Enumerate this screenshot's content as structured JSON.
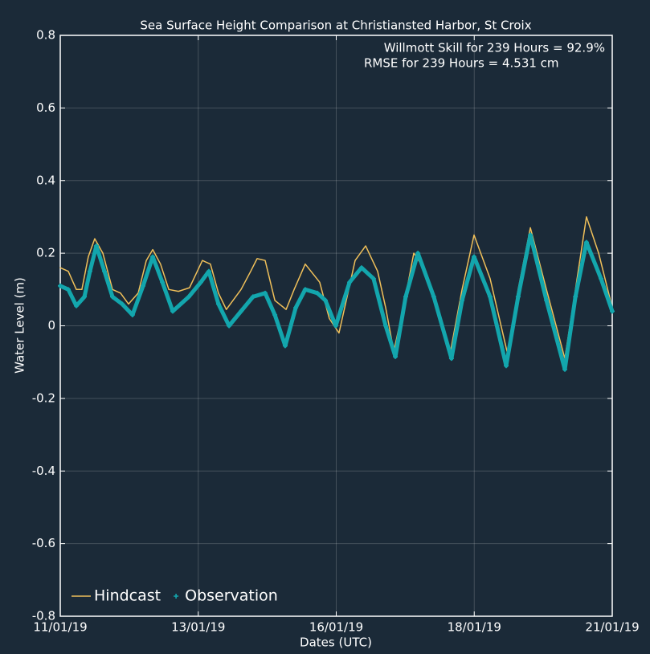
{
  "chart_data": {
    "type": "line",
    "title": "Sea Surface Height Comparison at Christiansted Harbor, St Croix",
    "x_label": "Dates (UTC)",
    "y_label": "Water Level (m)",
    "annotations": [
      "Willmott Skill for 239 Hours = 92.9%",
      "RMSE for 239 Hours = 4.531 cm"
    ],
    "xlim": [
      0,
      240
    ],
    "xticks": [
      {
        "value": 0,
        "label": "11/01/19"
      },
      {
        "value": 60,
        "label": "13/01/19"
      },
      {
        "value": 120,
        "label": "16/01/19"
      },
      {
        "value": 180,
        "label": "18/01/19"
      },
      {
        "value": 240,
        "label": "21/01/19"
      }
    ],
    "ylim": [
      -0.8,
      0.8
    ],
    "yticks": [
      -0.8,
      -0.6,
      -0.4,
      -0.2,
      0,
      0.2,
      0.4,
      0.6,
      0.8
    ],
    "grid": true,
    "legend": "lower left",
    "series": [
      {
        "name": "Hindcast",
        "color": "#f0c05a",
        "marker": "none",
        "x": [
          0,
          3.5,
          7,
          9.4,
          12.2,
          15,
          18.5,
          22.7,
          26.2,
          29.7,
          33.9,
          37.4,
          40.2,
          43.6,
          47.2,
          51.4,
          56.2,
          61.8,
          65.3,
          68.8,
          72.2,
          78.6,
          82.8,
          85.6,
          89.1,
          93.3,
          98.2,
          101.7,
          106.5,
          112.8,
          117,
          121.2,
          124.7,
          128.2,
          132.8,
          138,
          141.5,
          145,
          149.2,
          153.7,
          159,
          164.2,
          169.4,
          174.7,
          179.9,
          186.9,
          194.6,
          199.1,
          204.4,
          211.4,
          219.4,
          224,
          228.8,
          234.1,
          240
        ],
        "values": [
          0.16,
          0.15,
          0.1,
          0.1,
          0.19,
          0.24,
          0.2,
          0.1,
          0.09,
          0.06,
          0.09,
          0.18,
          0.21,
          0.17,
          0.1,
          0.095,
          0.105,
          0.18,
          0.17,
          0.09,
          0.045,
          0.1,
          0.15,
          0.185,
          0.18,
          0.07,
          0.045,
          0.1,
          0.17,
          0.12,
          0.02,
          -0.02,
          0.08,
          0.18,
          0.22,
          0.15,
          0.05,
          -0.07,
          0.05,
          0.2,
          0.15,
          0.03,
          -0.08,
          0.1,
          0.25,
          0.13,
          -0.08,
          0.1,
          0.27,
          0.1,
          -0.09,
          0.1,
          0.3,
          0.2,
          0.05
        ]
      },
      {
        "name": "Observation",
        "color": "#13a6ad",
        "marker": "plus",
        "x": [
          0,
          3.5,
          7,
          10.5,
          12.9,
          15.7,
          19.2,
          22.7,
          26.9,
          31.4,
          36,
          40.2,
          44.4,
          48.9,
          55.9,
          61.1,
          64.6,
          68.8,
          73.4,
          78.6,
          83.8,
          89.1,
          93.3,
          97.8,
          102.4,
          106.5,
          111.8,
          115.3,
          119.8,
          125.8,
          131,
          136.2,
          141.5,
          145.7,
          150.2,
          155.5,
          162.4,
          170.1,
          174.7,
          179.9,
          186.9,
          193.9,
          199.1,
          204.4,
          211.4,
          219.4,
          224,
          228.8,
          235.1,
          240
        ],
        "values": [
          0.11,
          0.1,
          0.055,
          0.08,
          0.15,
          0.22,
          0.15,
          0.08,
          0.06,
          0.03,
          0.11,
          0.19,
          0.12,
          0.04,
          0.08,
          0.12,
          0.15,
          0.06,
          0.0,
          0.04,
          0.08,
          0.09,
          0.03,
          -0.055,
          0.05,
          0.1,
          0.09,
          0.07,
          0.0,
          0.12,
          0.16,
          0.13,
          0.0,
          -0.085,
          0.08,
          0.2,
          0.08,
          -0.09,
          0.07,
          0.19,
          0.08,
          -0.11,
          0.08,
          0.25,
          0.07,
          -0.12,
          0.08,
          0.23,
          0.13,
          0.04
        ]
      }
    ]
  }
}
